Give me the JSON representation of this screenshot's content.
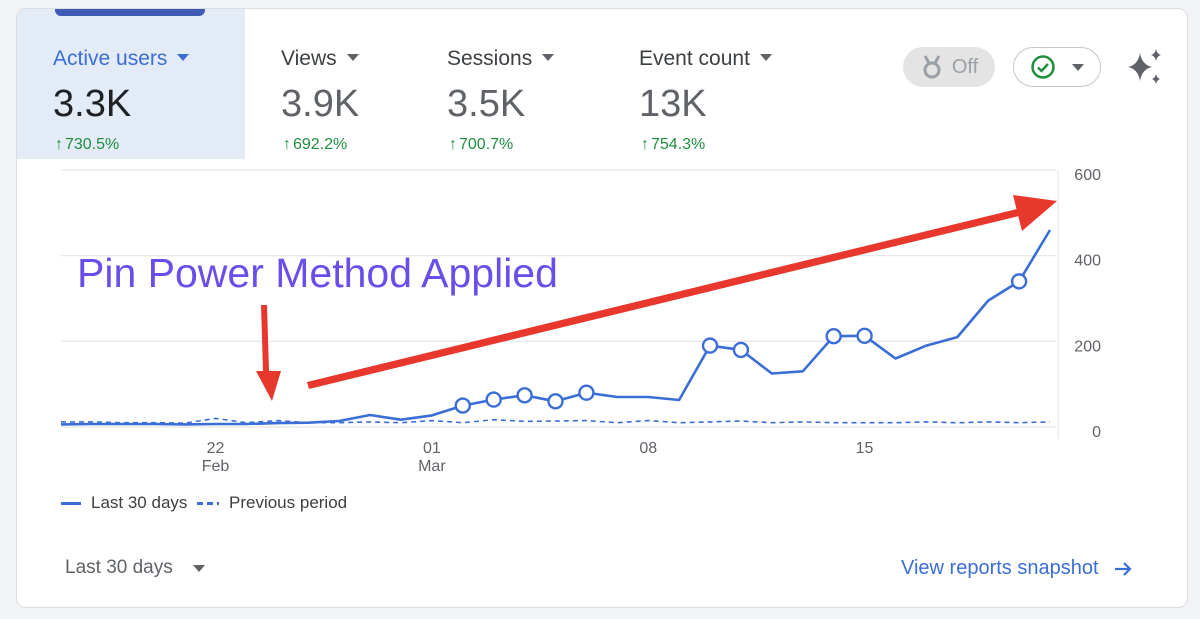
{
  "metrics": [
    {
      "label": "Active users",
      "value": "3.3K",
      "change": "730.5%",
      "active": true
    },
    {
      "label": "Views",
      "value": "3.9K",
      "change": "692.2%",
      "active": false
    },
    {
      "label": "Sessions",
      "value": "3.5K",
      "change": "700.7%",
      "active": false
    },
    {
      "label": "Event count",
      "value": "13K",
      "change": "754.3%",
      "active": false
    }
  ],
  "controls": {
    "toggle_label": "Off",
    "status_icon": "check-circle-icon",
    "insights_icon": "sparkle-icon"
  },
  "annotation": {
    "text": "Pin Power Method Applied",
    "arrow_color": "#e8372c"
  },
  "legend": {
    "current": "Last 30 days",
    "previous": "Previous period"
  },
  "footer": {
    "date_range": "Last 30 days",
    "link": "View reports snapshot"
  },
  "colors": {
    "accent": "#3a6ed6",
    "positive": "#1e8e3e",
    "annotation_text": "#6a4dea"
  },
  "chart_data": {
    "type": "line",
    "title": "",
    "xlabel": "",
    "ylabel": "",
    "ylim": [
      0,
      600
    ],
    "y_ticks": [
      0,
      200,
      400,
      600
    ],
    "x_ticks": [
      {
        "day": 5,
        "line1": "22",
        "line2": "Feb"
      },
      {
        "day": 12,
        "line1": "01",
        "line2": "Mar"
      },
      {
        "day": 19,
        "line1": "08",
        "line2": ""
      },
      {
        "day": 26,
        "line1": "15",
        "line2": ""
      }
    ],
    "series": [
      {
        "name": "Last 30 days",
        "style": "solid",
        "values": [
          6,
          7,
          7,
          7,
          6,
          7,
          7,
          9,
          10,
          14,
          28,
          17,
          27,
          50,
          64,
          74,
          60,
          80,
          70,
          70,
          63,
          190,
          180,
          125,
          130,
          212,
          213,
          160,
          190,
          210,
          295,
          340,
          460
        ],
        "markers": [
          13,
          14,
          15,
          16,
          17,
          21,
          22,
          25,
          26,
          31
        ]
      },
      {
        "name": "Previous period",
        "style": "dashed",
        "values": [
          12,
          12,
          10,
          10,
          9,
          20,
          10,
          15,
          10,
          10,
          12,
          10,
          15,
          10,
          17,
          13,
          14,
          15,
          10,
          15,
          10,
          12,
          14,
          10,
          12,
          10,
          10,
          10,
          12,
          10,
          12,
          10,
          12
        ]
      }
    ]
  }
}
